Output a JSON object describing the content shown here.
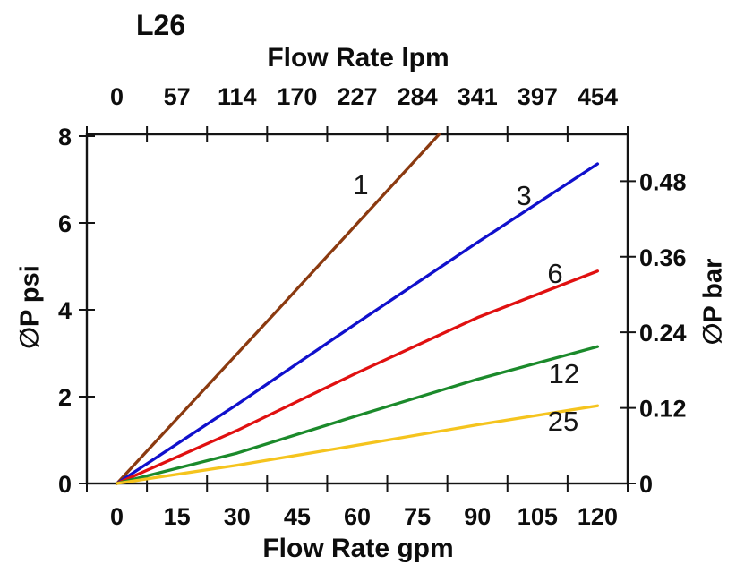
{
  "page_title": "L26",
  "chart_data": {
    "type": "line",
    "title": "L26",
    "grid": false,
    "legend": "inline-labels-on-lines",
    "axes": {
      "top": {
        "label": "Flow Rate lpm",
        "ticks": [
          0,
          57,
          114,
          170,
          227,
          284,
          341,
          397,
          454
        ]
      },
      "bottom": {
        "label": "Flow Rate gpm",
        "ticks": [
          0,
          15,
          30,
          45,
          60,
          75,
          90,
          105,
          120
        ],
        "range": [
          0,
          120
        ]
      },
      "left": {
        "label": "∅P psi",
        "ticks": [
          0,
          2,
          4,
          6,
          8
        ],
        "range": [
          0,
          8.04
        ]
      },
      "right": {
        "label": "∅P bar",
        "ticks": [
          0,
          0.12,
          0.24,
          0.36,
          0.48
        ],
        "bar_per_psi": 0.0689476
      }
    },
    "series": [
      {
        "name": "1",
        "color": "#8B3A10",
        "label_at_gpm_psi": [
          60.9,
          6.89
        ],
        "points_gpm_psi": [
          [
            0,
            0
          ],
          [
            40,
            3.98
          ],
          [
            80.4,
            8.04
          ]
        ]
      },
      {
        "name": "3",
        "color": "#1010CC",
        "label_at_gpm_psi": [
          101.6,
          6.64
        ],
        "points_gpm_psi": [
          [
            0,
            0
          ],
          [
            30,
            1.82
          ],
          [
            60,
            3.7
          ],
          [
            90,
            5.55
          ],
          [
            120,
            7.36
          ]
        ]
      },
      {
        "name": "6",
        "color": "#E01010",
        "label_at_gpm_psi": [
          109.4,
          4.85
        ],
        "points_gpm_psi": [
          [
            0,
            0
          ],
          [
            30,
            1.22
          ],
          [
            60,
            2.55
          ],
          [
            90,
            3.82
          ],
          [
            120,
            4.89
          ]
        ]
      },
      {
        "name": "12",
        "color": "#1B8A2B",
        "label_at_gpm_psi": [
          111.6,
          2.54
        ],
        "points_gpm_psi": [
          [
            0,
            0
          ],
          [
            30,
            0.7
          ],
          [
            60,
            1.56
          ],
          [
            90,
            2.4
          ],
          [
            120,
            3.15
          ]
        ]
      },
      {
        "name": "25",
        "color": "#F5C41E",
        "label_at_gpm_psi": [
          111.4,
          1.44
        ],
        "points_gpm_psi": [
          [
            0,
            0
          ],
          [
            30,
            0.42
          ],
          [
            60,
            0.88
          ],
          [
            90,
            1.35
          ],
          [
            120,
            1.79
          ]
        ]
      }
    ]
  }
}
